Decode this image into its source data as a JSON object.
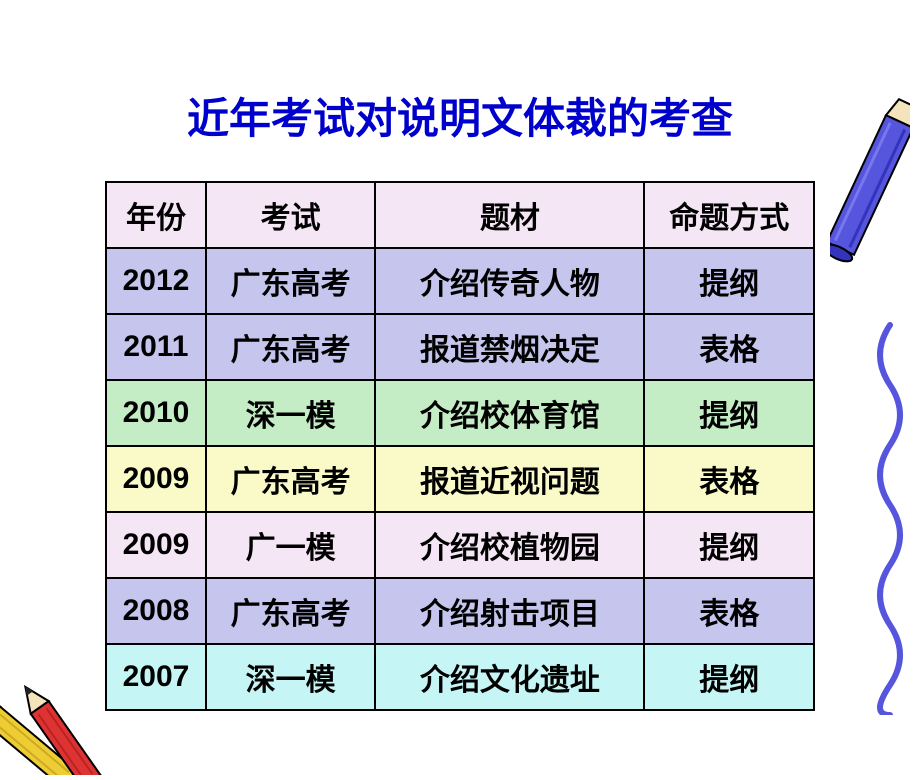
{
  "title": "近年考试对说明文体裁的考查",
  "table": {
    "headers": {
      "year": "年份",
      "exam": "考试",
      "topic": "题材",
      "format": "命题方式"
    },
    "header_bg": "#f5e6f5",
    "rows": [
      {
        "year": "2012",
        "exam": "广东高考",
        "topic": "介绍传奇人物",
        "format": "提纲",
        "bg": "#c5c5ed"
      },
      {
        "year": "2011",
        "exam": "广东高考",
        "topic": "报道禁烟决定",
        "format": "表格",
        "bg": "#c5c5ed"
      },
      {
        "year": "2010",
        "exam": "深一模",
        "topic": "介绍校体育馆",
        "format": "提纲",
        "bg": "#c5edc5"
      },
      {
        "year": "2009",
        "exam": "广东高考",
        "topic": "报道近视问题",
        "format": "表格",
        "bg": "#fafac8"
      },
      {
        "year": "2009",
        "exam": "广一模",
        "topic": "介绍校植物园",
        "format": "提纲",
        "bg": "#f5e6f5"
      },
      {
        "year": "2008",
        "exam": "广东高考",
        "topic": "介绍射击项目",
        "format": "表格",
        "bg": "#c5c5ed"
      },
      {
        "year": "2007",
        "exam": "深一模",
        "topic": "介绍文化遗址",
        "format": "提纲",
        "bg": "#c5f5f5"
      }
    ]
  },
  "decorations": {
    "crayon_color": "#5555dd",
    "squiggle_color": "#5555dd",
    "pencil_red": "#dd3333",
    "pencil_yellow": "#eecc33"
  }
}
